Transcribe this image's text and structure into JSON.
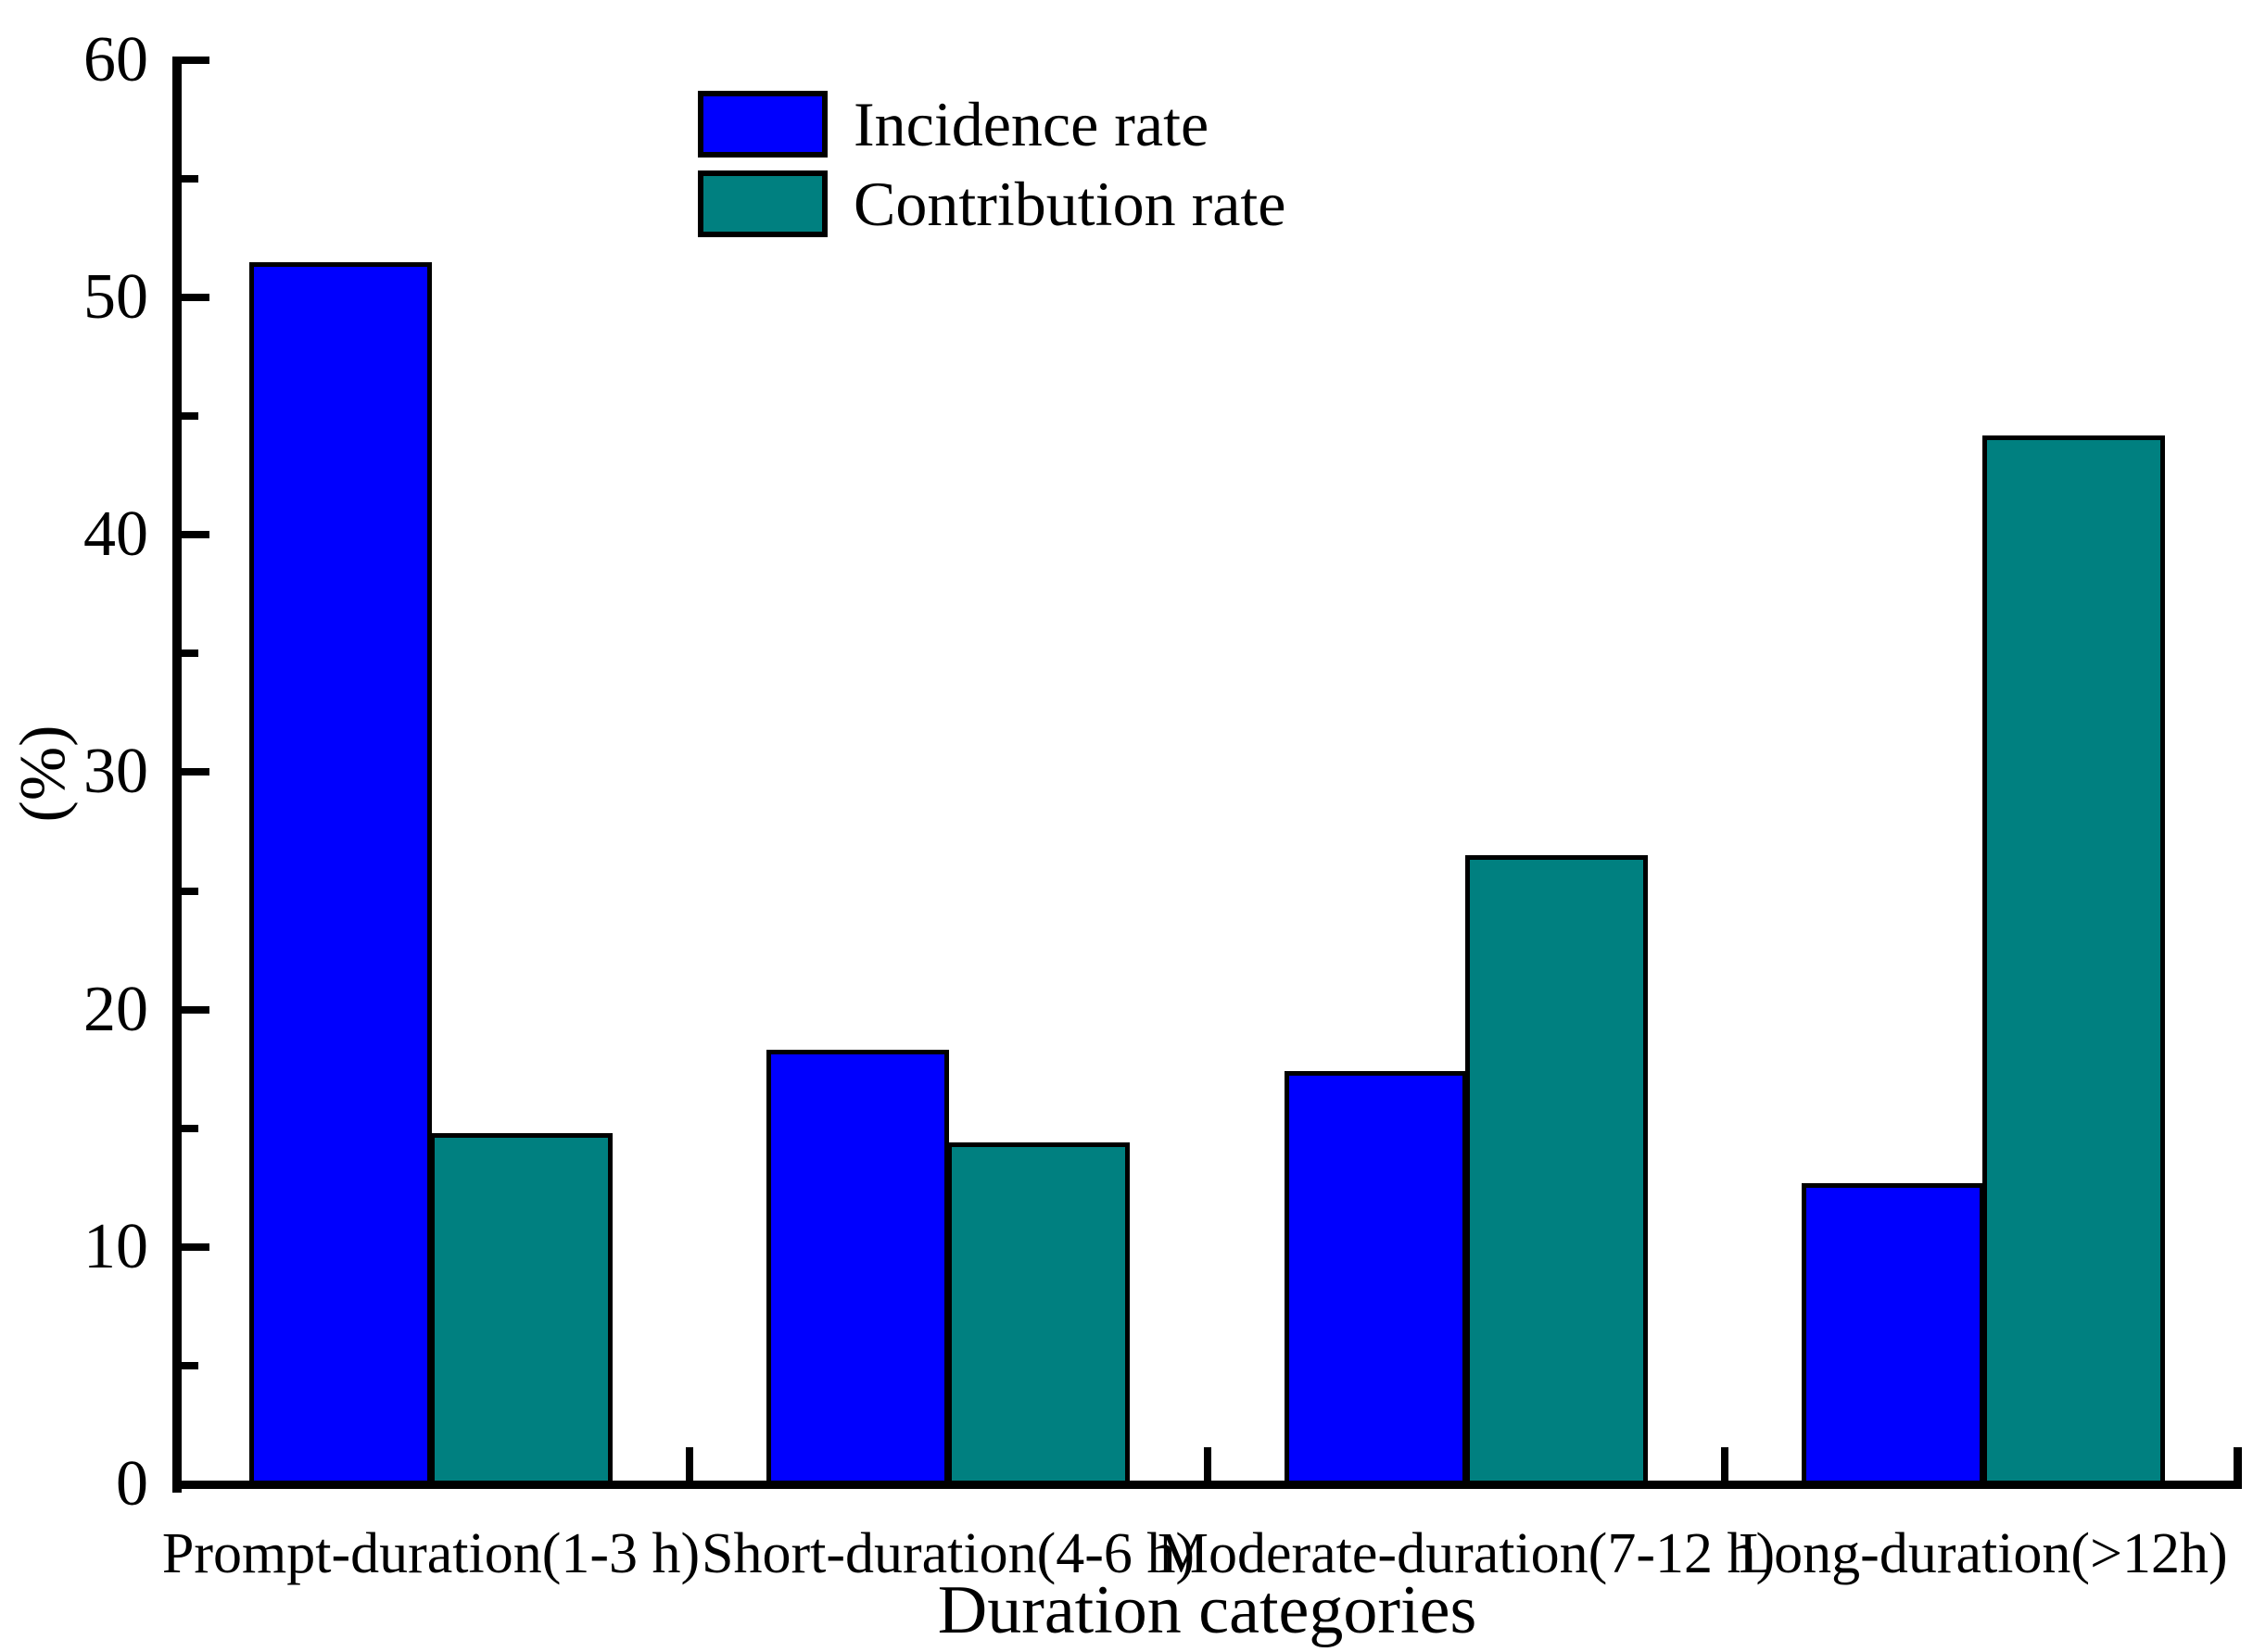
{
  "chart_data": {
    "type": "bar",
    "title": "",
    "xlabel": "Duration categories",
    "ylabel": "(%)",
    "ylim": [
      0,
      60
    ],
    "y_major_tick_step": 10,
    "y_minor_tick_step": 5,
    "y_tick_labels": [
      "0",
      "10",
      "20",
      "30",
      "40",
      "50",
      "60"
    ],
    "grid": false,
    "legend_position": "upper-left-inside",
    "categories": [
      "Prompt-duration(1-3 h)",
      "Short-duration(4-6 h)",
      "Moderate-duration(7-12 h)",
      "Long-duration(>12h)"
    ],
    "series": [
      {
        "name": "Incidence rate",
        "color": "#0000fe",
        "values": [
          51.5,
          18.3,
          17.4,
          12.7
        ]
      },
      {
        "name": "Contribution rate",
        "color": "#008080",
        "values": [
          14.8,
          14.4,
          26.5,
          44.2
        ]
      }
    ],
    "bar_outline_color": "#000000",
    "axis_color": "#000000",
    "background_color": "#ffffff"
  }
}
